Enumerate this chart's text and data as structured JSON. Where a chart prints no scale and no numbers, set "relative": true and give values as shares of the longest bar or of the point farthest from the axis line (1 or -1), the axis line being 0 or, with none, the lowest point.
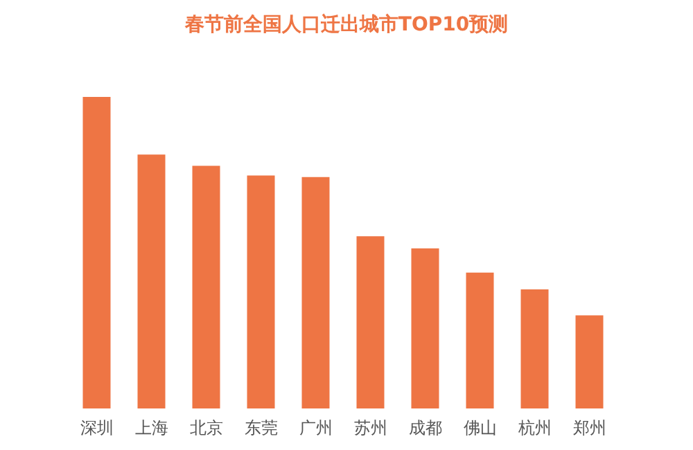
{
  "chart_data": {
    "type": "bar",
    "title": "春节前全国人口迁出城市TOP10预测",
    "categories": [
      "深圳",
      "上海",
      "北京",
      "东莞",
      "广州",
      "苏州",
      "成都",
      "佛山",
      "杭州",
      "郑州"
    ],
    "values": [
      1,
      0.815,
      0.779,
      0.748,
      0.743,
      0.553,
      0.514,
      0.436,
      0.382,
      0.299
    ],
    "color": "#ee7544",
    "relative": true
  }
}
